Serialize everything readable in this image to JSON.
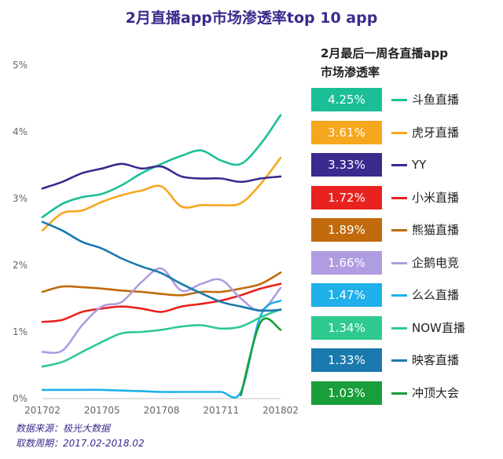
{
  "title": "2月直播app市场渗透率top 10 app",
  "legend_heading": [
    "2月最后一周各直播app",
    "市场渗透率"
  ],
  "footer": [
    "数据来源：极光大数据",
    "取数周期：2017.02-2018.02"
  ],
  "colors": {
    "axis": "#bfbfbf",
    "tick": "#666666",
    "title": "#3d2a8c"
  },
  "chart_data": {
    "type": "line",
    "title": "2月直播app市场渗透率top 10 app",
    "x_ticks": [
      "201702",
      "201705",
      "201708",
      "201711",
      "201802"
    ],
    "x": [
      "2017-02",
      "2017-03",
      "2017-04",
      "2017-05",
      "2017-06",
      "2017-07",
      "2017-08",
      "2017-09",
      "2017-10",
      "2017-11",
      "2017-12",
      "2018-01",
      "2018-02"
    ],
    "y_ticks": [
      "0%",
      "1%",
      "2%",
      "3%",
      "4%",
      "5%"
    ],
    "ylim": [
      0,
      5
    ],
    "y_unit": "%",
    "series": [
      {
        "name": "斗鱼直播",
        "color": "#1bbf97",
        "label": "4.25%",
        "values": [
          2.72,
          2.92,
          3.02,
          3.07,
          3.2,
          3.38,
          3.52,
          3.64,
          3.72,
          3.57,
          3.52,
          3.82,
          4.25
        ]
      },
      {
        "name": "虎牙直播",
        "color": "#f5a71e",
        "label": "3.61%",
        "values": [
          2.52,
          2.78,
          2.82,
          2.95,
          3.05,
          3.12,
          3.18,
          2.88,
          2.9,
          2.9,
          2.93,
          3.22,
          3.61
        ]
      },
      {
        "name": "YY",
        "color": "#3a2a8e",
        "label": "3.33%",
        "values": [
          3.15,
          3.25,
          3.38,
          3.45,
          3.52,
          3.45,
          3.48,
          3.33,
          3.3,
          3.3,
          3.25,
          3.3,
          3.33
        ]
      },
      {
        "name": "小米直播",
        "color": "#e8231f",
        "label": "1.72%",
        "values": [
          1.15,
          1.18,
          1.3,
          1.35,
          1.38,
          1.35,
          1.3,
          1.38,
          1.42,
          1.47,
          1.55,
          1.65,
          1.72
        ]
      },
      {
        "name": "熊猫直播",
        "color": "#c06a0c",
        "label": "1.89%",
        "values": [
          1.6,
          1.68,
          1.67,
          1.65,
          1.62,
          1.6,
          1.57,
          1.55,
          1.6,
          1.6,
          1.65,
          1.72,
          1.89
        ]
      },
      {
        "name": "企鹅电竞",
        "color": "#b09ce0",
        "label": "1.66%",
        "values": [
          0.7,
          0.72,
          1.1,
          1.38,
          1.45,
          1.75,
          1.95,
          1.62,
          1.72,
          1.78,
          1.5,
          1.32,
          1.66
        ]
      },
      {
        "name": "么么直播",
        "color": "#1fb0ea",
        "label": "1.47%",
        "values": [
          0.13,
          0.13,
          0.13,
          0.13,
          0.12,
          0.11,
          0.1,
          0.1,
          0.1,
          0.1,
          0.1,
          1.25,
          1.47
        ]
      },
      {
        "name": "NOW直播",
        "color": "#2ec98f",
        "label": "1.34%",
        "values": [
          0.48,
          0.55,
          0.7,
          0.85,
          0.98,
          1.0,
          1.03,
          1.08,
          1.1,
          1.05,
          1.08,
          1.22,
          1.34
        ]
      },
      {
        "name": "映客直播",
        "color": "#1a79ad",
        "label": "1.33%",
        "values": [
          2.65,
          2.52,
          2.35,
          2.25,
          2.1,
          1.98,
          1.88,
          1.72,
          1.58,
          1.45,
          1.38,
          1.32,
          1.33
        ]
      },
      {
        "name": "冲顶大会",
        "color": "#1a9e3c",
        "label": "1.03%",
        "values": [
          null,
          null,
          null,
          null,
          null,
          null,
          null,
          null,
          null,
          null,
          0.05,
          1.15,
          1.03
        ]
      }
    ]
  }
}
